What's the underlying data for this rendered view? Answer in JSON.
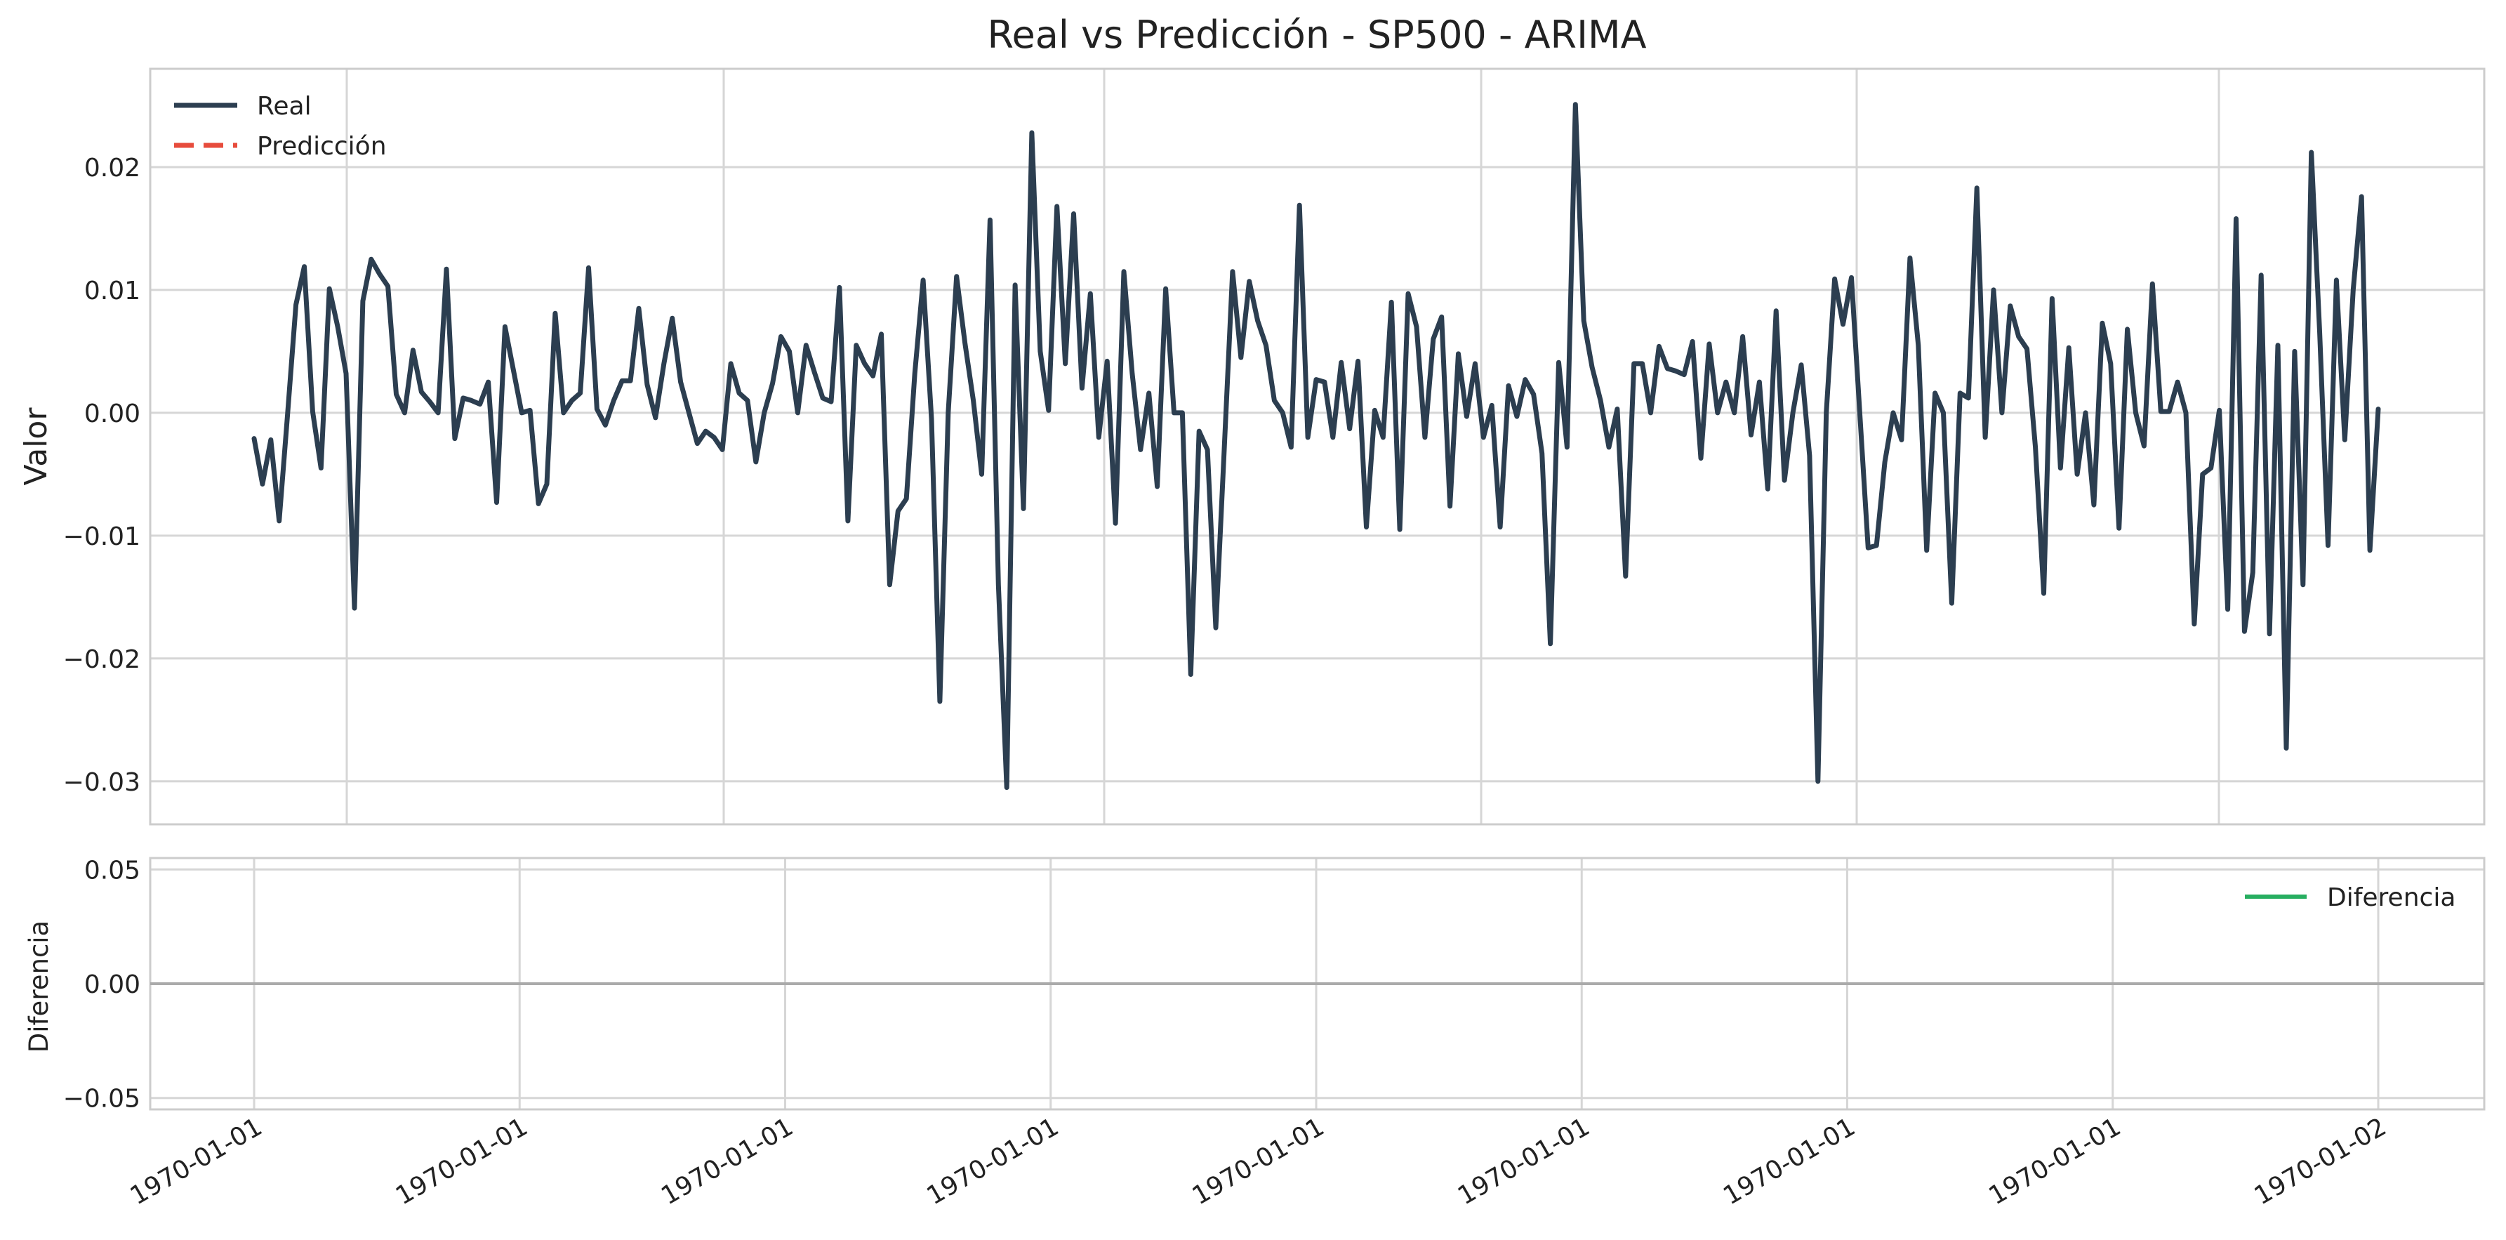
{
  "chart_data": [
    {
      "type": "line",
      "title": "Real vs Predicción - SP500 - ARIMA",
      "xlabel": "",
      "ylabel": "Valor",
      "ylim": [
        -0.0335,
        0.028
      ],
      "y_ticks": [
        -0.03,
        -0.02,
        -0.01,
        0.0,
        0.01,
        0.02
      ],
      "y_tick_labels": [
        "−0.03",
        "−0.02",
        "−0.01",
        "0.00",
        "0.01",
        "0.02"
      ],
      "grid": true,
      "legend": "top-left",
      "colors": {
        "real": "#2c3e50",
        "prediccion": "#e74c3c"
      },
      "series": [
        {
          "name": "Real",
          "style": "solid",
          "values": [
            -0.0021,
            -0.0058,
            -0.0022,
            -0.0088,
            -0.0001,
            0.0088,
            0.0119,
            0.0001,
            -0.0045,
            0.0101,
            0.007,
            0.0032,
            -0.0159,
            0.0091,
            0.0125,
            0.0113,
            0.0103,
            0.0015,
            0.0,
            0.0051,
            0.0017,
            0.0009,
            0.0,
            0.0117,
            -0.0021,
            0.0012,
            0.001,
            0.0007,
            0.0025,
            -0.0073,
            0.007,
            0.0035,
            0.0,
            0.0002,
            -0.0074,
            -0.0058,
            0.0081,
            0.0,
            0.001,
            0.0016,
            0.0118,
            0.0003,
            -0.001,
            0.001,
            0.0026,
            0.0026,
            0.0085,
            0.0023,
            -0.0004,
            0.004,
            0.0077,
            0.0025,
            0.0,
            -0.0025,
            -0.0015,
            -0.002,
            -0.003,
            0.004,
            0.0016,
            0.001,
            -0.004,
            0.0,
            0.0024,
            0.0062,
            0.005,
            0.0,
            0.0055,
            0.0033,
            0.0012,
            0.0009,
            0.0102,
            -0.0088,
            0.0055,
            0.004,
            0.003,
            0.0064,
            -0.014,
            -0.008,
            -0.007,
            0.0032,
            0.0108,
            -0.0005,
            -0.0235,
            0.0,
            0.0111,
            0.0057,
            0.001,
            -0.005,
            0.0157,
            -0.014,
            -0.0305,
            0.0104,
            -0.0078,
            0.0228,
            0.005,
            0.0002,
            0.0168,
            0.004,
            0.0162,
            0.002,
            0.0097,
            -0.002,
            0.0042,
            -0.009,
            0.0115,
            0.0032,
            -0.003,
            0.0016,
            -0.006,
            0.0101,
            0.0,
            0.0,
            -0.0213,
            -0.0015,
            -0.003,
            -0.0175,
            -0.003,
            0.0115,
            0.0045,
            0.0107,
            0.0075,
            0.0055,
            0.001,
            0.0,
            -0.0028,
            0.0169,
            -0.002,
            0.0027,
            0.0025,
            -0.002,
            0.0041,
            -0.0013,
            0.0042,
            -0.0093,
            0.0002,
            -0.002,
            0.009,
            -0.0095,
            0.0097,
            0.007,
            -0.002,
            0.006,
            0.0078,
            -0.0076,
            0.0048,
            -0.0003,
            0.004,
            -0.002,
            0.0006,
            -0.0093,
            0.0022,
            -0.0003,
            0.0027,
            0.0015,
            -0.0033,
            -0.0188,
            0.0041,
            -0.0028,
            0.0251,
            0.0075,
            0.0037,
            0.001,
            -0.0028,
            0.0003,
            -0.0133,
            0.004,
            0.004,
            0.0,
            0.0054,
            0.0036,
            0.0034,
            0.0031,
            0.0058,
            -0.0037,
            0.0056,
            0.0,
            0.0025,
            0.0,
            0.0062,
            -0.0018,
            0.0025,
            -0.0062,
            0.0083,
            -0.0055,
            0.0,
            0.0039,
            -0.0035,
            -0.03,
            0.0,
            0.0109,
            0.0072,
            0.011,
            0.0,
            -0.011,
            -0.0108,
            -0.004,
            0.0,
            -0.0022,
            0.0126,
            0.0055,
            -0.0112,
            0.0016,
            0.0,
            -0.0155,
            0.0016,
            0.0012,
            0.0183,
            -0.002,
            0.01,
            0.0,
            0.0087,
            0.0062,
            0.0052,
            -0.0028,
            -0.0147,
            0.0093,
            -0.0045,
            0.0053,
            -0.005,
            0.0,
            -0.0075,
            0.0073,
            0.004,
            -0.0094,
            0.0068,
            0.0,
            -0.0027,
            0.0105,
            0.0001,
            0.0001,
            0.0025,
            0.0,
            -0.0172,
            -0.005,
            -0.0045,
            0.0002,
            -0.016,
            0.0158,
            -0.0178,
            -0.013,
            0.0112,
            -0.018,
            0.0055,
            -0.0273,
            0.005,
            -0.014,
            0.0212,
            0.0065,
            -0.0108,
            0.0108,
            -0.0022,
            0.01,
            0.0176,
            -0.0112,
            0.0003
          ]
        },
        {
          "name": "Predicción",
          "style": "dashed",
          "values": []
        }
      ]
    },
    {
      "type": "line",
      "title": "",
      "xlabel": "",
      "ylabel": "Diferencia",
      "ylim": [
        -0.055,
        0.055
      ],
      "y_ticks": [
        -0.05,
        0.0,
        0.05
      ],
      "y_tick_labels": [
        "−0.05",
        "0.00",
        "0.05"
      ],
      "x_tick_labels": [
        "1970-01-01",
        "1970-01-01",
        "1970-01-01",
        "1970-01-01",
        "1970-01-01",
        "1970-01-01",
        "1970-01-01",
        "1970-01-01",
        "1970-01-02"
      ],
      "grid": true,
      "legend": "top-right",
      "colors": {
        "diferencia": "#27ae60",
        "zero_line": "#aaaaaa"
      },
      "series": [
        {
          "name": "Diferencia",
          "values": []
        }
      ]
    }
  ]
}
